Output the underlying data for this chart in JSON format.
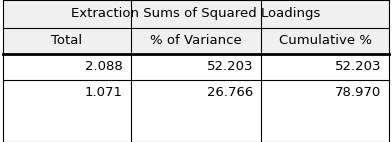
{
  "title": "Extraction Sums of Squared Loadings",
  "columns": [
    "Total",
    "% of Variance",
    "Cumulative %"
  ],
  "rows": [
    [
      "2.088",
      "52.203",
      "52.203"
    ],
    [
      "1.071",
      "26.766",
      "78.970"
    ]
  ],
  "background_color": "#ffffff",
  "border_color": "#000000",
  "cell_bg": "#f0f0f0",
  "data_bg": "#ffffff",
  "font_size": 9.5,
  "title_font_size": 9.5,
  "fig_width": 3.92,
  "fig_height": 1.42,
  "dpi": 100
}
